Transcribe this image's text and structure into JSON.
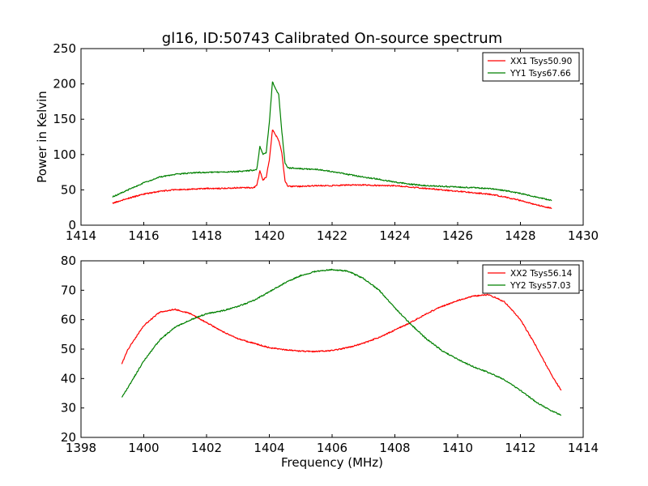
{
  "chart_data": [
    {
      "type": "line",
      "title": "gl16, ID:50743 Calibrated On-source spectrum",
      "xlabel": "",
      "ylabel": "Power in Kelvin",
      "xlim": [
        1414,
        1430
      ],
      "ylim": [
        0,
        250
      ],
      "xticks": [
        "1414",
        "1416",
        "1418",
        "1420",
        "1422",
        "1424",
        "1426",
        "1428",
        "1430"
      ],
      "yticks": [
        "0",
        "50",
        "100",
        "150",
        "200",
        "250"
      ],
      "grid": false,
      "legend_position": "top-right",
      "series": [
        {
          "name": "XX1 Tsys50.90",
          "color": "#ff0000",
          "x": [
            1415.0,
            1415.5,
            1416.0,
            1416.5,
            1417.0,
            1417.5,
            1418.0,
            1418.5,
            1419.0,
            1419.5,
            1419.6,
            1419.7,
            1419.8,
            1419.9,
            1420.0,
            1420.1,
            1420.2,
            1420.3,
            1420.4,
            1420.5,
            1420.6,
            1420.7,
            1421.0,
            1421.5,
            1422.0,
            1422.5,
            1423.0,
            1423.5,
            1424.0,
            1424.5,
            1425.0,
            1425.5,
            1426.0,
            1426.5,
            1427.0,
            1427.5,
            1428.0,
            1428.5,
            1429.0
          ],
          "values": [
            31,
            38,
            44,
            48,
            50,
            51,
            52,
            52,
            53,
            53,
            56,
            77,
            64,
            68,
            92,
            135,
            128,
            120,
            102,
            62,
            55,
            55,
            55,
            56,
            56,
            57,
            57,
            56,
            56,
            54,
            52,
            50,
            48,
            46,
            44,
            40,
            35,
            29,
            24
          ]
        },
        {
          "name": "YY1 Tsys67.66",
          "color": "#008000",
          "x": [
            1415.0,
            1415.5,
            1416.0,
            1416.5,
            1417.0,
            1417.5,
            1418.0,
            1418.5,
            1419.0,
            1419.5,
            1419.6,
            1419.7,
            1419.8,
            1419.9,
            1420.0,
            1420.1,
            1420.2,
            1420.3,
            1420.4,
            1420.5,
            1420.6,
            1420.7,
            1421.0,
            1421.5,
            1422.0,
            1422.5,
            1423.0,
            1423.5,
            1424.0,
            1424.5,
            1425.0,
            1425.5,
            1426.0,
            1426.5,
            1427.0,
            1427.5,
            1428.0,
            1428.5,
            1429.0
          ],
          "values": [
            40,
            50,
            60,
            68,
            72,
            74,
            75,
            75,
            76,
            78,
            79,
            112,
            100,
            103,
            145,
            203,
            193,
            185,
            132,
            88,
            81,
            81,
            80,
            79,
            76,
            72,
            68,
            65,
            61,
            58,
            56,
            55,
            54,
            53,
            52,
            49,
            45,
            40,
            35
          ]
        }
      ]
    },
    {
      "type": "line",
      "title": "",
      "xlabel": "Frequency (MHz)",
      "ylabel": "",
      "xlim": [
        1398,
        1414
      ],
      "ylim": [
        20,
        80
      ],
      "xticks": [
        "1398",
        "1400",
        "1402",
        "1404",
        "1406",
        "1408",
        "1410",
        "1412",
        "1414"
      ],
      "yticks": [
        "20",
        "30",
        "40",
        "50",
        "60",
        "70",
        "80"
      ],
      "grid": false,
      "legend_position": "top-right",
      "series": [
        {
          "name": "XX2 Tsys56.14",
          "color": "#ff0000",
          "x": [
            1399.3,
            1399.5,
            1400.0,
            1400.5,
            1401.0,
            1401.5,
            1402.0,
            1402.5,
            1403.0,
            1403.5,
            1404.0,
            1404.5,
            1405.0,
            1405.5,
            1406.0,
            1406.5,
            1407.0,
            1407.5,
            1408.0,
            1408.5,
            1409.0,
            1409.5,
            1410.0,
            1410.5,
            1411.0,
            1411.5,
            1412.0,
            1412.5,
            1413.0,
            1413.3
          ],
          "values": [
            45,
            50,
            58,
            62.5,
            63.5,
            62,
            59,
            56,
            53.5,
            52,
            50.5,
            49.8,
            49.3,
            49.2,
            49.5,
            50.5,
            52,
            54,
            56.5,
            59,
            62,
            64.5,
            66.5,
            68,
            68.5,
            66,
            60,
            51,
            41,
            36
          ]
        },
        {
          "name": "YY2 Tsys57.03",
          "color": "#008000",
          "x": [
            1399.3,
            1399.5,
            1400.0,
            1400.5,
            1401.0,
            1401.5,
            1402.0,
            1402.5,
            1403.0,
            1403.5,
            1404.0,
            1404.5,
            1405.0,
            1405.5,
            1406.0,
            1406.5,
            1407.0,
            1407.5,
            1408.0,
            1408.5,
            1409.0,
            1409.5,
            1410.0,
            1410.5,
            1411.0,
            1411.5,
            1412.0,
            1412.5,
            1413.0,
            1413.3
          ],
          "values": [
            33.5,
            37,
            46,
            53,
            57.5,
            60,
            62,
            63,
            64.5,
            66.5,
            69.5,
            72.5,
            75,
            76.5,
            77,
            76.5,
            74,
            70,
            64,
            58.5,
            53.5,
            49.5,
            46.5,
            44,
            42,
            39.5,
            36,
            32,
            29,
            27.5
          ]
        }
      ]
    }
  ]
}
